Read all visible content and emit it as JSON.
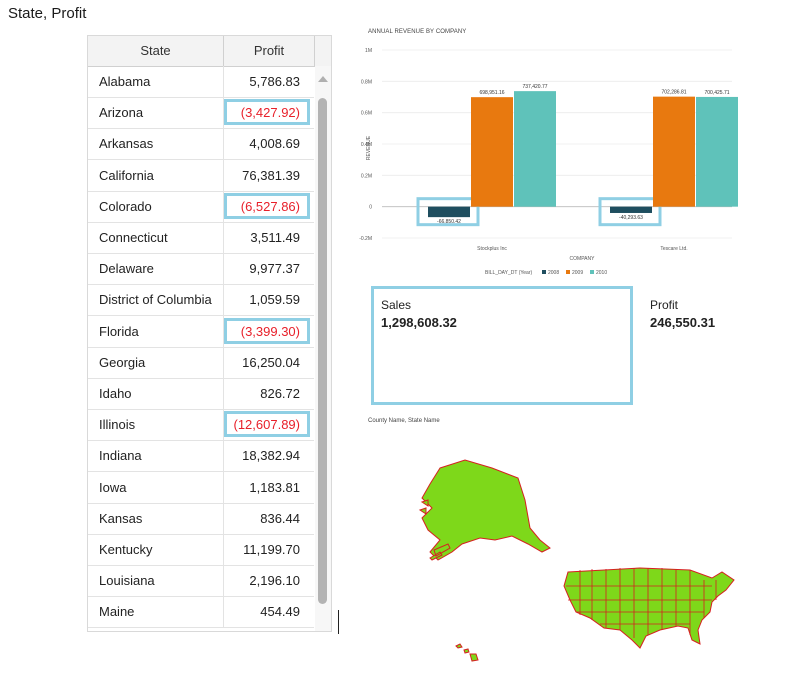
{
  "section_title": "State, Profit",
  "table": {
    "headers": {
      "state": "State",
      "profit": "Profit"
    },
    "rows": [
      {
        "state": "Alabama",
        "profit": "5,786.83",
        "negative": false
      },
      {
        "state": "Arizona",
        "profit": "(3,427.92)",
        "negative": true
      },
      {
        "state": "Arkansas",
        "profit": "4,008.69",
        "negative": false
      },
      {
        "state": "California",
        "profit": "76,381.39",
        "negative": false
      },
      {
        "state": "Colorado",
        "profit": "(6,527.86)",
        "negative": true
      },
      {
        "state": "Connecticut",
        "profit": "3,511.49",
        "negative": false
      },
      {
        "state": "Delaware",
        "profit": "9,977.37",
        "negative": false
      },
      {
        "state": "District of Columbia",
        "profit": "1,059.59",
        "negative": false
      },
      {
        "state": "Florida",
        "profit": "(3,399.30)",
        "negative": true
      },
      {
        "state": "Georgia",
        "profit": "16,250.04",
        "negative": false
      },
      {
        "state": "Idaho",
        "profit": "826.72",
        "negative": false
      },
      {
        "state": "Illinois",
        "profit": "(12,607.89)",
        "negative": true
      },
      {
        "state": "Indiana",
        "profit": "18,382.94",
        "negative": false
      },
      {
        "state": "Iowa",
        "profit": "1,183.81",
        "negative": false
      },
      {
        "state": "Kansas",
        "profit": "836.44",
        "negative": false
      },
      {
        "state": "Kentucky",
        "profit": "11,199.70",
        "negative": false
      },
      {
        "state": "Louisiana",
        "profit": "2,196.10",
        "negative": false
      },
      {
        "state": "Maine",
        "profit": "454.49",
        "negative": false
      }
    ]
  },
  "chart_data": {
    "type": "bar",
    "title": "ANNUAL REVENUE BY COMPANY",
    "xlabel": "COMPANY",
    "ylabel": "REVENUE",
    "categories": [
      "Stockplus Inc",
      "Tescare Ltd."
    ],
    "ylim": [
      -200000,
      1000000
    ],
    "yticks": [
      "1M",
      "0.8M",
      "0.6M",
      "0.4M",
      "0.2M",
      "0",
      "-0.2M"
    ],
    "yticks_values": [
      1000000,
      800000,
      600000,
      400000,
      200000,
      0,
      -200000
    ],
    "legend_title": "BILL_DAY_DT (Year)",
    "legend_position": "bottom",
    "series": [
      {
        "name": "2008",
        "color": "#1f4e5f",
        "values": [
          -66850.42,
          -40293.63
        ],
        "labels": [
          "-66,850.42",
          "-40,293.63"
        ]
      },
      {
        "name": "2009",
        "color": "#e8790f",
        "values": [
          698951.16,
          702286.81
        ],
        "labels": [
          "698,951.16",
          "702,286.81"
        ]
      },
      {
        "name": "2010",
        "color": "#5fc2ba",
        "values": [
          737420.77,
          700425.71
        ],
        "labels": [
          "737,420.77",
          "700,425.71"
        ]
      }
    ],
    "highlight_color": "#8fcfe4"
  },
  "kpi": {
    "sales_label": "Sales",
    "sales_value": "1,298,608.32",
    "profit_label": "Profit",
    "profit_value": "246,550.31"
  },
  "map": {
    "title": "County Name, State Name",
    "fill_color": "#7ed81a",
    "stroke_color": "#d62020"
  },
  "colors": {
    "highlight": "#8fcfe4",
    "negative": "#e8202a"
  }
}
